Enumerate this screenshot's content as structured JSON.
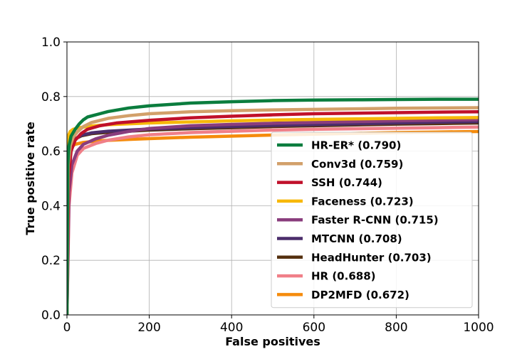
{
  "chart_data": {
    "type": "line",
    "xlabel": "False positives",
    "ylabel": "True positive rate",
    "xlim": [
      0,
      1000
    ],
    "ylim": [
      0.0,
      1.0
    ],
    "xticks": [
      "0",
      "200",
      "400",
      "600",
      "800",
      "1000"
    ],
    "yticks": [
      "0.0",
      "0.2",
      "0.4",
      "0.6",
      "0.8",
      "1.0"
    ],
    "grid": true,
    "legend_position": "lower-right",
    "series": [
      {
        "name": "HR-ER* (0.790)",
        "color": "#0b7d3e",
        "points": [
          [
            0,
            0.0
          ],
          [
            2,
            0.55
          ],
          [
            5,
            0.62
          ],
          [
            10,
            0.655
          ],
          [
            20,
            0.68
          ],
          [
            30,
            0.7
          ],
          [
            40,
            0.715
          ],
          [
            50,
            0.725
          ],
          [
            75,
            0.735
          ],
          [
            100,
            0.745
          ],
          [
            150,
            0.758
          ],
          [
            200,
            0.766
          ],
          [
            300,
            0.776
          ],
          [
            400,
            0.781
          ],
          [
            500,
            0.785
          ],
          [
            600,
            0.787
          ],
          [
            700,
            0.788
          ],
          [
            800,
            0.789
          ],
          [
            900,
            0.79
          ],
          [
            1000,
            0.79
          ]
        ]
      },
      {
        "name": "Conv3d (0.759)",
        "color": "#d2a06a",
        "points": [
          [
            0,
            0.0
          ],
          [
            3,
            0.55
          ],
          [
            8,
            0.62
          ],
          [
            15,
            0.65
          ],
          [
            25,
            0.67
          ],
          [
            40,
            0.69
          ],
          [
            60,
            0.705
          ],
          [
            100,
            0.72
          ],
          [
            150,
            0.73
          ],
          [
            200,
            0.737
          ],
          [
            300,
            0.744
          ],
          [
            400,
            0.748
          ],
          [
            500,
            0.751
          ],
          [
            600,
            0.753
          ],
          [
            700,
            0.755
          ],
          [
            800,
            0.757
          ],
          [
            900,
            0.758
          ],
          [
            1000,
            0.759
          ]
        ]
      },
      {
        "name": "SSH (0.744)",
        "color": "#c0102a",
        "points": [
          [
            0,
            0.0
          ],
          [
            4,
            0.5
          ],
          [
            10,
            0.6
          ],
          [
            20,
            0.64
          ],
          [
            35,
            0.665
          ],
          [
            50,
            0.68
          ],
          [
            80,
            0.693
          ],
          [
            120,
            0.703
          ],
          [
            200,
            0.713
          ],
          [
            300,
            0.722
          ],
          [
            400,
            0.728
          ],
          [
            500,
            0.733
          ],
          [
            600,
            0.737
          ],
          [
            700,
            0.739
          ],
          [
            800,
            0.741
          ],
          [
            900,
            0.743
          ],
          [
            1000,
            0.744
          ]
        ]
      },
      {
        "name": "Faceness (0.723)",
        "color": "#f7b80a",
        "points": [
          [
            0,
            0.0
          ],
          [
            1,
            0.6
          ],
          [
            3,
            0.655
          ],
          [
            8,
            0.672
          ],
          [
            15,
            0.68
          ],
          [
            30,
            0.686
          ],
          [
            60,
            0.692
          ],
          [
            100,
            0.697
          ],
          [
            200,
            0.703
          ],
          [
            300,
            0.707
          ],
          [
            400,
            0.711
          ],
          [
            500,
            0.714
          ],
          [
            600,
            0.716
          ],
          [
            700,
            0.718
          ],
          [
            800,
            0.72
          ],
          [
            900,
            0.722
          ],
          [
            1000,
            0.723
          ]
        ]
      },
      {
        "name": "Faster R-CNN (0.715)",
        "color": "#8a3d7d",
        "points": [
          [
            0,
            0.0
          ],
          [
            5,
            0.45
          ],
          [
            12,
            0.55
          ],
          [
            25,
            0.6
          ],
          [
            40,
            0.625
          ],
          [
            70,
            0.645
          ],
          [
            100,
            0.658
          ],
          [
            150,
            0.672
          ],
          [
            200,
            0.683
          ],
          [
            300,
            0.693
          ],
          [
            400,
            0.698
          ],
          [
            500,
            0.702
          ],
          [
            600,
            0.705
          ],
          [
            700,
            0.708
          ],
          [
            800,
            0.711
          ],
          [
            900,
            0.713
          ],
          [
            1000,
            0.715
          ]
        ]
      },
      {
        "name": "MTCNN (0.708)",
        "color": "#4b2d6b",
        "points": [
          [
            0,
            0.0
          ],
          [
            2,
            0.5
          ],
          [
            6,
            0.6
          ],
          [
            12,
            0.63
          ],
          [
            20,
            0.645
          ],
          [
            35,
            0.658
          ],
          [
            60,
            0.667
          ],
          [
            100,
            0.673
          ],
          [
            200,
            0.681
          ],
          [
            300,
            0.686
          ],
          [
            400,
            0.69
          ],
          [
            500,
            0.694
          ],
          [
            600,
            0.697
          ],
          [
            700,
            0.7
          ],
          [
            800,
            0.703
          ],
          [
            900,
            0.706
          ],
          [
            1000,
            0.708
          ]
        ]
      },
      {
        "name": "HeadHunter (0.703)",
        "color": "#55300f",
        "points": [
          [
            0,
            0.0
          ],
          [
            2,
            0.52
          ],
          [
            6,
            0.6
          ],
          [
            12,
            0.63
          ],
          [
            20,
            0.645
          ],
          [
            35,
            0.656
          ],
          [
            60,
            0.664
          ],
          [
            100,
            0.669
          ],
          [
            200,
            0.677
          ],
          [
            300,
            0.682
          ],
          [
            400,
            0.686
          ],
          [
            500,
            0.69
          ],
          [
            600,
            0.693
          ],
          [
            700,
            0.696
          ],
          [
            800,
            0.699
          ],
          [
            900,
            0.701
          ],
          [
            1000,
            0.703
          ]
        ]
      },
      {
        "name": "HR (0.688)",
        "color": "#f07f88",
        "points": [
          [
            0,
            0.0
          ],
          [
            5,
            0.4
          ],
          [
            12,
            0.52
          ],
          [
            25,
            0.585
          ],
          [
            40,
            0.61
          ],
          [
            70,
            0.628
          ],
          [
            100,
            0.64
          ],
          [
            150,
            0.652
          ],
          [
            200,
            0.66
          ],
          [
            300,
            0.668
          ],
          [
            400,
            0.673
          ],
          [
            500,
            0.677
          ],
          [
            600,
            0.68
          ],
          [
            700,
            0.682
          ],
          [
            800,
            0.684
          ],
          [
            900,
            0.686
          ],
          [
            1000,
            0.688
          ]
        ]
      },
      {
        "name": "DP2MFD (0.672)",
        "color": "#f58b0c",
        "points": [
          [
            0,
            0.0
          ],
          [
            2,
            0.55
          ],
          [
            5,
            0.6
          ],
          [
            10,
            0.615
          ],
          [
            20,
            0.625
          ],
          [
            40,
            0.632
          ],
          [
            80,
            0.638
          ],
          [
            150,
            0.643
          ],
          [
            200,
            0.646
          ],
          [
            300,
            0.651
          ],
          [
            400,
            0.655
          ],
          [
            500,
            0.659
          ],
          [
            600,
            0.662
          ],
          [
            700,
            0.665
          ],
          [
            800,
            0.668
          ],
          [
            900,
            0.67
          ],
          [
            1000,
            0.672
          ]
        ]
      }
    ]
  }
}
